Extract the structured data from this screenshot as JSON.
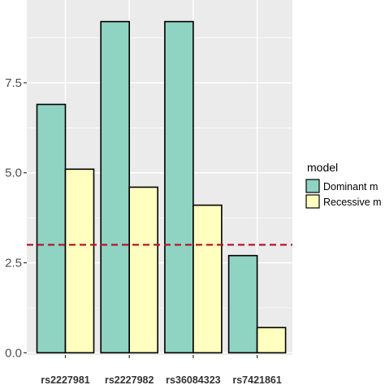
{
  "chart_data": {
    "type": "bar",
    "categories": [
      "rs2227981",
      "rs2227982",
      "rs36084323",
      "rs7421861"
    ],
    "series": [
      {
        "name": "Dominant m",
        "color": "#8fd3c3",
        "values": [
          6.9,
          9.2,
          9.2,
          2.7
        ]
      },
      {
        "name": "Recessive m",
        "color": "#ffffbf",
        "values": [
          5.1,
          4.6,
          4.1,
          0.7
        ]
      }
    ],
    "yticks": [
      {
        "value": 0,
        "label": "0.0"
      },
      {
        "value": 2.5,
        "label": "2.5"
      },
      {
        "value": 5,
        "label": "5.0"
      },
      {
        "value": 7.5,
        "label": "7.5"
      }
    ],
    "ylim": [
      -0.06,
      9.8
    ],
    "threshold": {
      "value": 3.0,
      "color": "#b2182b"
    },
    "legend": {
      "title": "model",
      "position": "right"
    },
    "grid": true,
    "panel_color": "#ebebeb"
  }
}
